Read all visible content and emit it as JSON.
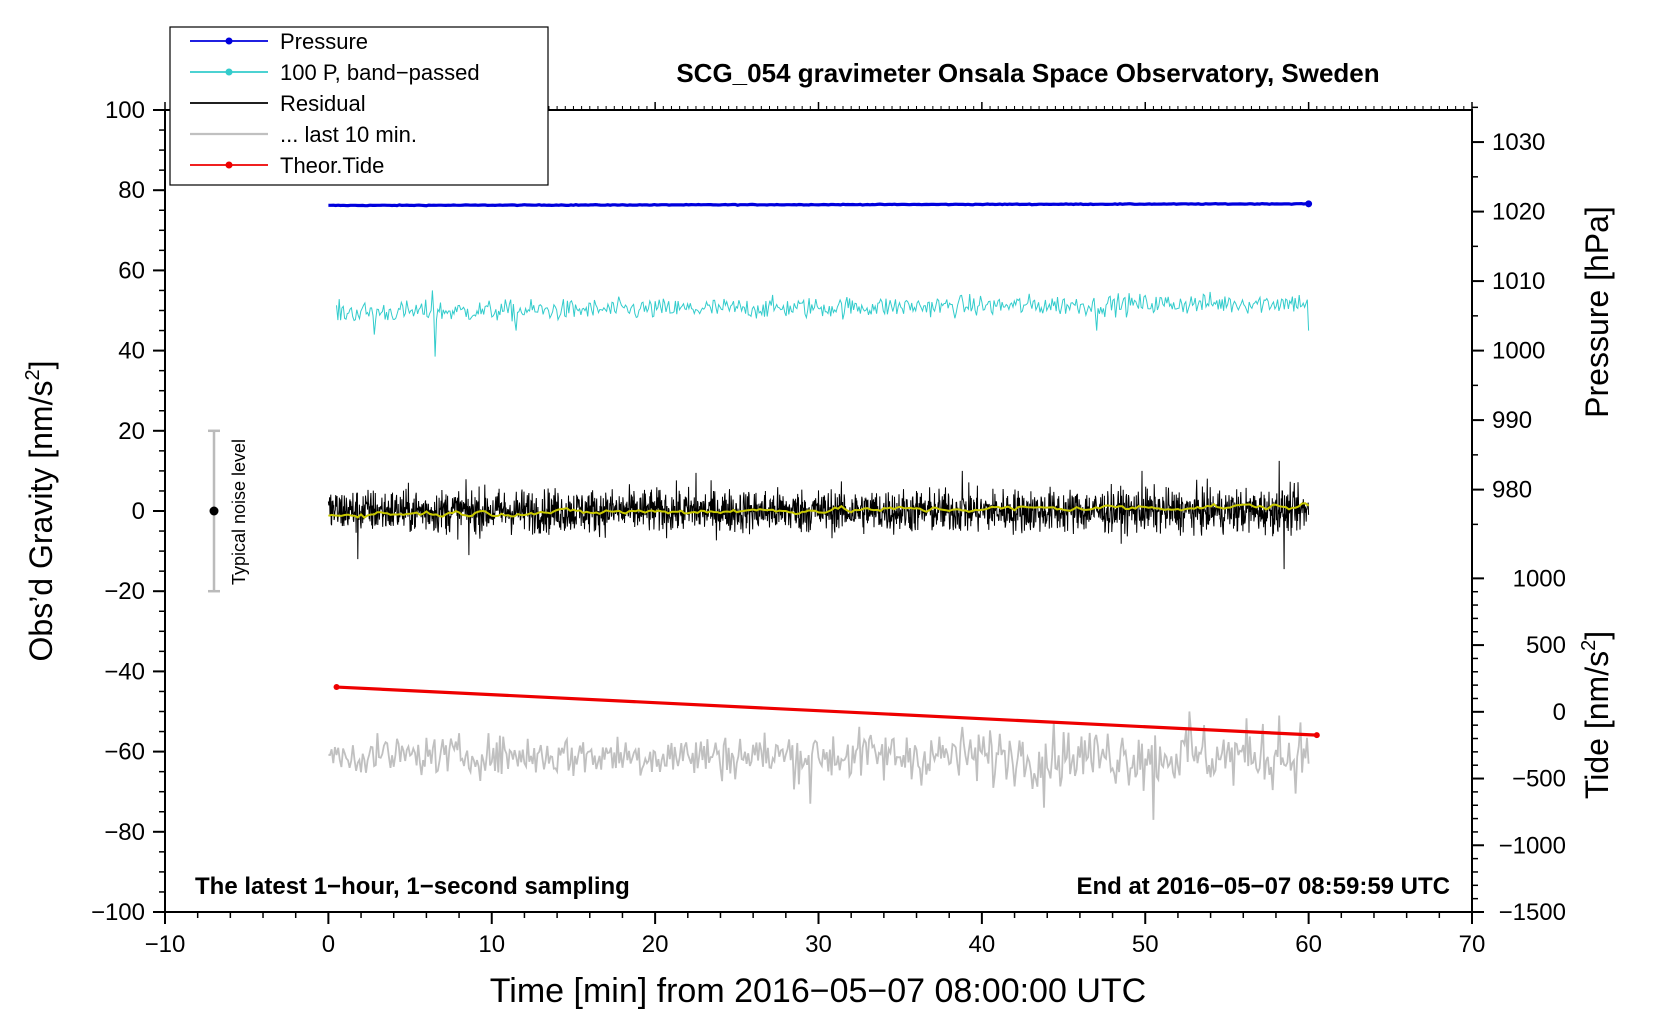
{
  "chart_data": {
    "type": "line",
    "title": "SCG_054 gravimeter Onsala Space Observatory, Sweden",
    "xlabel": "Time [min] from 2016−05−07 08:00:00 UTC",
    "ylabel_left_prefix": "Obs’d Gravity [nm/s",
    "ylabel_left_suffix": "]",
    "ylabel_right_pressure": "Pressure [hPa]",
    "ylabel_right_tide_prefix": "Tide [nm/s",
    "ylabel_right_tide_suffix": "]",
    "superscript": "2",
    "xlim": [
      -10,
      70
    ],
    "ylim": [
      -100,
      100
    ],
    "x_ticks": [
      -10,
      0,
      10,
      20,
      30,
      40,
      50,
      60,
      70
    ],
    "x_tick_labels": [
      "−10",
      "0",
      "10",
      "20",
      "30",
      "40",
      "50",
      "60",
      "70"
    ],
    "y_ticks": [
      -100,
      -80,
      -60,
      -40,
      -20,
      0,
      20,
      40,
      60,
      80,
      100
    ],
    "y_tick_labels": [
      "−100",
      "−80",
      "−60",
      "−40",
      "−20",
      "0",
      "20",
      "40",
      "60",
      "80",
      "100"
    ],
    "pressure_axis": {
      "ticks": [
        980,
        990,
        1000,
        1010,
        1020,
        1030
      ],
      "tick_labels": [
        "980",
        "990",
        "1000",
        "1010",
        "1020",
        "1030"
      ],
      "map": {
        "value_a": 1000,
        "gravity_a": 40,
        "value_b": 1030,
        "gravity_b": 92
      }
    },
    "tide_axis": {
      "ticks": [
        -1500,
        -1000,
        -500,
        0,
        500,
        1000
      ],
      "tick_labels": [
        "−1500",
        "−1000",
        "−500",
        "0",
        "500",
        "1000"
      ],
      "map": {
        "value_a": -1500,
        "gravity_a": -100,
        "value_b": 1000,
        "gravity_b": -16.8
      }
    },
    "legend": {
      "position": "top-left",
      "entries": [
        {
          "label": "Pressure",
          "color": "#0000dd",
          "marker": true
        },
        {
          "label": "100 P, band−passed",
          "color": "#33cccc",
          "marker": true
        },
        {
          "label": "Residual",
          "color": "#000000",
          "marker": false
        },
        {
          "label": "... last 10 min.",
          "color": "#c0c0c0",
          "marker": false
        },
        {
          "label": "Theor.Tide",
          "color": "#ee0000",
          "marker": true
        }
      ]
    },
    "annotations": {
      "bottom_left": "The latest 1−hour, 1−second sampling",
      "bottom_right": "End at 2016−05−07 08:59:59 UTC",
      "noise_label": "Typical noise level"
    },
    "noise_bar": {
      "x": -7,
      "center": 0,
      "low": -20,
      "high": 20
    },
    "series": [
      {
        "name": "Pressure",
        "color": "#0000dd",
        "kind": "pressure",
        "x_start": 0,
        "x_end": 60,
        "start": 76.2,
        "end": 76.6,
        "noise": 0.15
      },
      {
        "name": "100 P, band-passed",
        "color": "#33cccc",
        "kind": "bandpass",
        "x_start": 0.5,
        "x_end": 60,
        "center": 49.5,
        "drift": 2.5,
        "amplitude": 2.2,
        "spikes": [
          [
            6.5,
            38.5
          ],
          [
            6.4,
            55
          ],
          [
            2.8,
            44
          ],
          [
            11.5,
            45
          ],
          [
            47,
            45
          ],
          [
            60,
            45
          ]
        ]
      },
      {
        "name": "Residual",
        "color": "#000000",
        "kind": "residual",
        "x_start": 0,
        "x_end": 60,
        "center": 0,
        "amplitude": 5,
        "spikes": [
          [
            1.8,
            -12
          ],
          [
            8.6,
            -11
          ],
          [
            58.2,
            12.5
          ],
          [
            58.5,
            -14.5
          ],
          [
            38.8,
            10
          ],
          [
            49.8,
            10
          ],
          [
            22.5,
            9.5
          ]
        ]
      },
      {
        "name": "Residual smoothed",
        "color": "#c8c800",
        "kind": "smooth",
        "x_start": 0,
        "x_end": 60,
        "start": -0.8,
        "end": 1.2,
        "amplitude": 0.8
      },
      {
        "name": "... last 10 min.",
        "color": "#c0c0c0",
        "kind": "last10",
        "x_start": 0,
        "x_end": 60,
        "center": -61,
        "amplitude": 4.5,
        "spikes": [
          [
            50.5,
            -77
          ],
          [
            43.8,
            -74
          ],
          [
            52.7,
            -50
          ],
          [
            29.5,
            -73
          ],
          [
            58.2,
            -51
          ]
        ]
      },
      {
        "name": "Theor.Tide",
        "color": "#ee0000",
        "kind": "tide",
        "x_start": 0.5,
        "x_end": 60.5,
        "y_start": -43.9,
        "y_end": -55.9
      }
    ]
  }
}
